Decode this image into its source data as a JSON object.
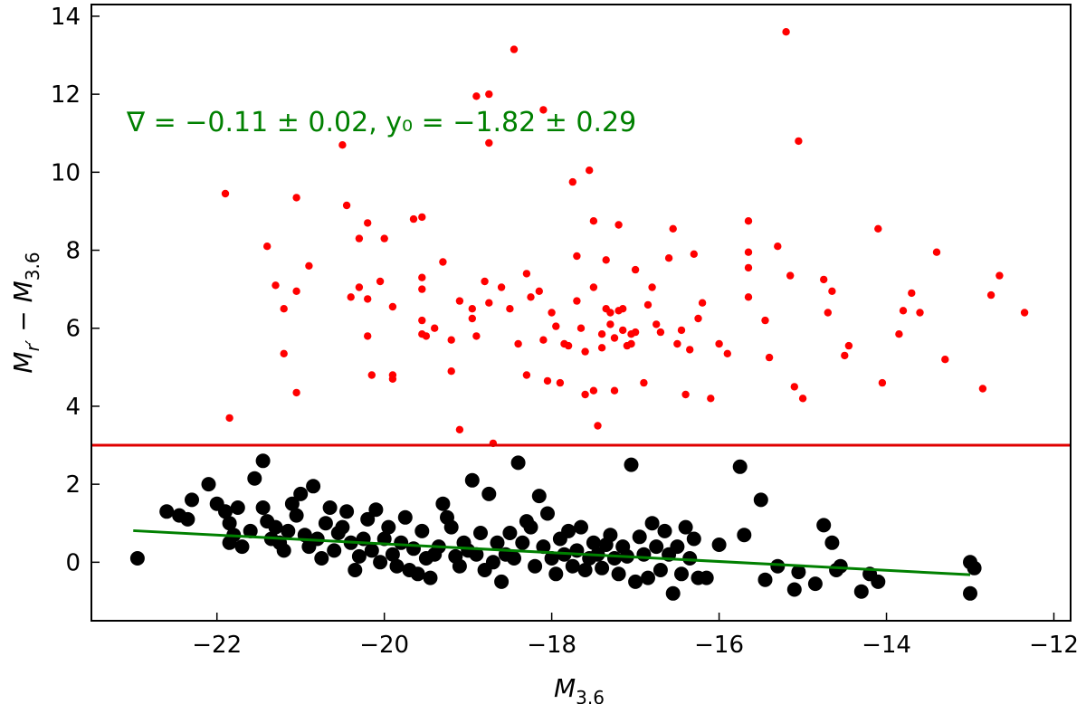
{
  "chart_data": {
    "type": "scatter",
    "title": "",
    "xlim": [
      -23.5,
      -11.8
    ],
    "ylim": [
      -1.5,
      14.3
    ],
    "xticks": [
      -22,
      -20,
      -18,
      -16,
      -14,
      -12
    ],
    "yticks": [
      0,
      2,
      4,
      6,
      8,
      10,
      12,
      14
    ],
    "xtick_labels": [
      "−22",
      "−20",
      "−18",
      "−16",
      "−14",
      "−12"
    ],
    "ytick_labels": [
      "0",
      "2",
      "4",
      "6",
      "8",
      "10",
      "12",
      "14"
    ],
    "xlabel": {
      "base": "M",
      "sub": "3.6"
    },
    "ylabel": {
      "base1": "M",
      "sub1": "r′",
      "mid": " − ",
      "base2": "M",
      "sub2": "3.6"
    },
    "grid": false,
    "annotation": {
      "text": "∇ = −0.11 ± 0.02, y₀ = −1.82 ± 0.29",
      "color": "#008000"
    },
    "threshold_line": {
      "y": 3.0,
      "color": "#e00000"
    },
    "fit_line": {
      "x": [
        -23.0,
        -13.0
      ],
      "y": [
        0.81,
        -0.32
      ],
      "color": "#008000"
    },
    "series": [
      {
        "color": "#ff0000",
        "size": "small",
        "points": [
          [
            -21.9,
            9.45
          ],
          [
            -21.85,
            3.7
          ],
          [
            -21.4,
            8.1
          ],
          [
            -21.3,
            7.1
          ],
          [
            -21.2,
            6.5
          ],
          [
            -21.2,
            5.35
          ],
          [
            -21.05,
            9.35
          ],
          [
            -21.05,
            6.95
          ],
          [
            -21.05,
            4.35
          ],
          [
            -20.9,
            7.6
          ],
          [
            -20.5,
            10.7
          ],
          [
            -20.45,
            9.15
          ],
          [
            -20.4,
            6.8
          ],
          [
            -20.3,
            8.3
          ],
          [
            -20.3,
            7.05
          ],
          [
            -20.2,
            8.7
          ],
          [
            -20.2,
            6.75
          ],
          [
            -20.2,
            5.8
          ],
          [
            -20.15,
            4.8
          ],
          [
            -20.05,
            7.2
          ],
          [
            -20.0,
            8.3
          ],
          [
            -19.9,
            6.55
          ],
          [
            -19.9,
            4.8
          ],
          [
            -19.9,
            4.7
          ],
          [
            -19.65,
            8.8
          ],
          [
            -19.55,
            8.85
          ],
          [
            -19.55,
            7.3
          ],
          [
            -19.55,
            7.0
          ],
          [
            -19.55,
            6.2
          ],
          [
            -19.55,
            5.85
          ],
          [
            -19.5,
            5.8
          ],
          [
            -19.4,
            6.0
          ],
          [
            -19.3,
            7.7
          ],
          [
            -19.2,
            5.7
          ],
          [
            -19.2,
            4.9
          ],
          [
            -19.1,
            3.4
          ],
          [
            -19.1,
            6.7
          ],
          [
            -18.95,
            6.5
          ],
          [
            -18.95,
            6.25
          ],
          [
            -18.9,
            5.8
          ],
          [
            -18.9,
            11.95
          ],
          [
            -18.75,
            12.0
          ],
          [
            -18.75,
            10.75
          ],
          [
            -18.8,
            7.2
          ],
          [
            -18.75,
            6.65
          ],
          [
            -18.7,
            3.05
          ],
          [
            -18.6,
            7.05
          ],
          [
            -18.45,
            13.15
          ],
          [
            -18.5,
            6.5
          ],
          [
            -18.4,
            5.6
          ],
          [
            -18.3,
            7.4
          ],
          [
            -18.3,
            4.8
          ],
          [
            -18.25,
            6.8
          ],
          [
            -18.15,
            6.95
          ],
          [
            -18.1,
            11.6
          ],
          [
            -18.1,
            5.7
          ],
          [
            -18.05,
            4.65
          ],
          [
            -18.0,
            6.4
          ],
          [
            -17.95,
            6.05
          ],
          [
            -17.9,
            4.6
          ],
          [
            -17.85,
            5.6
          ],
          [
            -17.8,
            5.55
          ],
          [
            -17.75,
            9.75
          ],
          [
            -17.7,
            7.85
          ],
          [
            -17.7,
            6.7
          ],
          [
            -17.65,
            6.0
          ],
          [
            -17.6,
            5.4
          ],
          [
            -17.6,
            4.3
          ],
          [
            -17.55,
            10.05
          ],
          [
            -17.5,
            8.75
          ],
          [
            -17.5,
            7.05
          ],
          [
            -17.5,
            4.4
          ],
          [
            -17.45,
            3.5
          ],
          [
            -17.4,
            5.85
          ],
          [
            -17.4,
            5.5
          ],
          [
            -17.35,
            7.75
          ],
          [
            -17.35,
            6.5
          ],
          [
            -17.3,
            6.4
          ],
          [
            -17.3,
            6.1
          ],
          [
            -17.25,
            4.4
          ],
          [
            -17.25,
            5.75
          ],
          [
            -17.2,
            8.65
          ],
          [
            -17.2,
            6.45
          ],
          [
            -17.15,
            6.5
          ],
          [
            -17.15,
            5.95
          ],
          [
            -17.1,
            5.55
          ],
          [
            -17.05,
            5.6
          ],
          [
            -17.05,
            5.85
          ],
          [
            -17.0,
            7.5
          ],
          [
            -17.0,
            5.9
          ],
          [
            -16.9,
            4.6
          ],
          [
            -16.85,
            6.6
          ],
          [
            -16.8,
            7.05
          ],
          [
            -16.75,
            6.1
          ],
          [
            -16.7,
            5.9
          ],
          [
            -16.6,
            7.8
          ],
          [
            -16.55,
            8.55
          ],
          [
            -16.5,
            5.6
          ],
          [
            -16.45,
            5.95
          ],
          [
            -16.4,
            4.3
          ],
          [
            -16.35,
            5.45
          ],
          [
            -16.3,
            7.9
          ],
          [
            -16.25,
            6.25
          ],
          [
            -16.2,
            6.65
          ],
          [
            -16.1,
            4.2
          ],
          [
            -16.0,
            5.6
          ],
          [
            -15.9,
            5.35
          ],
          [
            -15.65,
            8.75
          ],
          [
            -15.65,
            7.95
          ],
          [
            -15.65,
            7.55
          ],
          [
            -15.65,
            6.8
          ],
          [
            -15.45,
            6.2
          ],
          [
            -15.4,
            5.25
          ],
          [
            -15.3,
            8.1
          ],
          [
            -15.2,
            13.6
          ],
          [
            -15.15,
            7.35
          ],
          [
            -15.1,
            4.5
          ],
          [
            -15.05,
            10.8
          ],
          [
            -15.0,
            4.2
          ],
          [
            -14.75,
            7.25
          ],
          [
            -14.7,
            6.4
          ],
          [
            -14.65,
            6.95
          ],
          [
            -14.5,
            5.3
          ],
          [
            -14.45,
            5.55
          ],
          [
            -14.1,
            8.55
          ],
          [
            -14.05,
            4.6
          ],
          [
            -13.85,
            5.85
          ],
          [
            -13.8,
            6.45
          ],
          [
            -13.7,
            6.9
          ],
          [
            -13.6,
            6.4
          ],
          [
            -13.4,
            7.95
          ],
          [
            -13.3,
            5.2
          ],
          [
            -12.85,
            4.45
          ],
          [
            -12.75,
            6.85
          ],
          [
            -12.65,
            7.35
          ],
          [
            -12.35,
            6.4
          ]
        ]
      },
      {
        "color": "#000000",
        "size": "large",
        "points": [
          [
            -22.95,
            0.1
          ],
          [
            -22.6,
            1.3
          ],
          [
            -22.45,
            1.2
          ],
          [
            -22.35,
            1.1
          ],
          [
            -22.3,
            1.6
          ],
          [
            -22.1,
            2.0
          ],
          [
            -22.0,
            1.5
          ],
          [
            -21.9,
            1.3
          ],
          [
            -21.85,
            1.0
          ],
          [
            -21.85,
            0.5
          ],
          [
            -21.8,
            0.7
          ],
          [
            -21.75,
            1.4
          ],
          [
            -21.7,
            0.4
          ],
          [
            -21.6,
            0.8
          ],
          [
            -21.55,
            2.15
          ],
          [
            -21.45,
            2.6
          ],
          [
            -21.45,
            1.4
          ],
          [
            -21.4,
            1.05
          ],
          [
            -21.35,
            0.6
          ],
          [
            -21.3,
            0.9
          ],
          [
            -21.25,
            0.5
          ],
          [
            -21.2,
            0.3
          ],
          [
            -21.15,
            0.8
          ],
          [
            -21.1,
            1.5
          ],
          [
            -21.05,
            1.2
          ],
          [
            -21.0,
            1.75
          ],
          [
            -20.95,
            0.7
          ],
          [
            -20.9,
            0.4
          ],
          [
            -20.85,
            1.95
          ],
          [
            -20.8,
            0.6
          ],
          [
            -20.75,
            0.1
          ],
          [
            -20.7,
            1.0
          ],
          [
            -20.65,
            1.4
          ],
          [
            -20.6,
            0.3
          ],
          [
            -20.55,
            0.75
          ],
          [
            -20.5,
            0.9
          ],
          [
            -20.45,
            1.3
          ],
          [
            -20.4,
            0.5
          ],
          [
            -20.35,
            -0.2
          ],
          [
            -20.3,
            0.15
          ],
          [
            -20.25,
            0.6
          ],
          [
            -20.2,
            1.1
          ],
          [
            -20.15,
            0.3
          ],
          [
            -20.1,
            1.35
          ],
          [
            -20.05,
            0.0
          ],
          [
            -20.0,
            0.6
          ],
          [
            -19.95,
            0.9
          ],
          [
            -19.9,
            0.2
          ],
          [
            -19.85,
            -0.1
          ],
          [
            -19.8,
            0.5
          ],
          [
            -19.75,
            1.15
          ],
          [
            -19.7,
            -0.2
          ],
          [
            -19.65,
            0.35
          ],
          [
            -19.6,
            -0.3
          ],
          [
            -19.55,
            0.8
          ],
          [
            -19.5,
            0.1
          ],
          [
            -19.45,
            -0.4
          ],
          [
            -19.4,
            0.2
          ],
          [
            -19.35,
            0.4
          ],
          [
            -19.3,
            1.5
          ],
          [
            -19.25,
            1.15
          ],
          [
            -19.2,
            0.9
          ],
          [
            -19.15,
            0.15
          ],
          [
            -19.1,
            -0.1
          ],
          [
            -19.05,
            0.5
          ],
          [
            -19.0,
            0.3
          ],
          [
            -18.95,
            2.1
          ],
          [
            -18.9,
            0.2
          ],
          [
            -18.85,
            0.75
          ],
          [
            -18.8,
            -0.2
          ],
          [
            -18.75,
            1.75
          ],
          [
            -18.7,
            0.0
          ],
          [
            -18.65,
            0.5
          ],
          [
            -18.6,
            -0.5
          ],
          [
            -18.55,
            0.2
          ],
          [
            -18.5,
            0.75
          ],
          [
            -18.45,
            0.1
          ],
          [
            -18.4,
            2.55
          ],
          [
            -18.35,
            0.5
          ],
          [
            -18.3,
            1.05
          ],
          [
            -18.25,
            0.9
          ],
          [
            -18.2,
            -0.1
          ],
          [
            -18.15,
            1.7
          ],
          [
            -18.1,
            0.4
          ],
          [
            -18.05,
            1.25
          ],
          [
            -18.0,
            0.1
          ],
          [
            -17.95,
            -0.3
          ],
          [
            -17.9,
            0.6
          ],
          [
            -17.85,
            0.2
          ],
          [
            -17.8,
            0.8
          ],
          [
            -17.75,
            -0.1
          ],
          [
            -17.7,
            0.3
          ],
          [
            -17.65,
            0.9
          ],
          [
            -17.6,
            -0.2
          ],
          [
            -17.55,
            0.1
          ],
          [
            -17.5,
            0.5
          ],
          [
            -17.45,
            0.2
          ],
          [
            -17.4,
            -0.15
          ],
          [
            -17.35,
            0.45
          ],
          [
            -17.3,
            0.7
          ],
          [
            -17.25,
            0.1
          ],
          [
            -17.2,
            -0.3
          ],
          [
            -17.15,
            0.4
          ],
          [
            -17.1,
            0.15
          ],
          [
            -17.05,
            2.5
          ],
          [
            -17.0,
            -0.5
          ],
          [
            -16.95,
            0.65
          ],
          [
            -16.9,
            0.2
          ],
          [
            -16.85,
            -0.4
          ],
          [
            -16.8,
            1.0
          ],
          [
            -16.75,
            0.4
          ],
          [
            -16.7,
            -0.2
          ],
          [
            -16.65,
            0.8
          ],
          [
            -16.6,
            0.2
          ],
          [
            -16.55,
            -0.8
          ],
          [
            -16.5,
            0.4
          ],
          [
            -16.45,
            -0.3
          ],
          [
            -16.4,
            0.9
          ],
          [
            -16.35,
            0.1
          ],
          [
            -16.3,
            0.6
          ],
          [
            -16.25,
            -0.4
          ],
          [
            -16.15,
            -0.4
          ],
          [
            -16.0,
            0.45
          ],
          [
            -15.75,
            2.45
          ],
          [
            -15.7,
            0.7
          ],
          [
            -15.5,
            1.6
          ],
          [
            -15.45,
            -0.45
          ],
          [
            -15.3,
            -0.1
          ],
          [
            -15.1,
            -0.7
          ],
          [
            -15.05,
            -0.25
          ],
          [
            -14.85,
            -0.55
          ],
          [
            -14.75,
            0.95
          ],
          [
            -14.65,
            0.5
          ],
          [
            -14.6,
            -0.2
          ],
          [
            -14.55,
            -0.1
          ],
          [
            -14.3,
            -0.75
          ],
          [
            -14.2,
            -0.3
          ],
          [
            -14.1,
            -0.5
          ],
          [
            -13.0,
            0.0
          ],
          [
            -12.95,
            -0.15
          ],
          [
            -13.0,
            -0.8
          ]
        ]
      }
    ]
  }
}
